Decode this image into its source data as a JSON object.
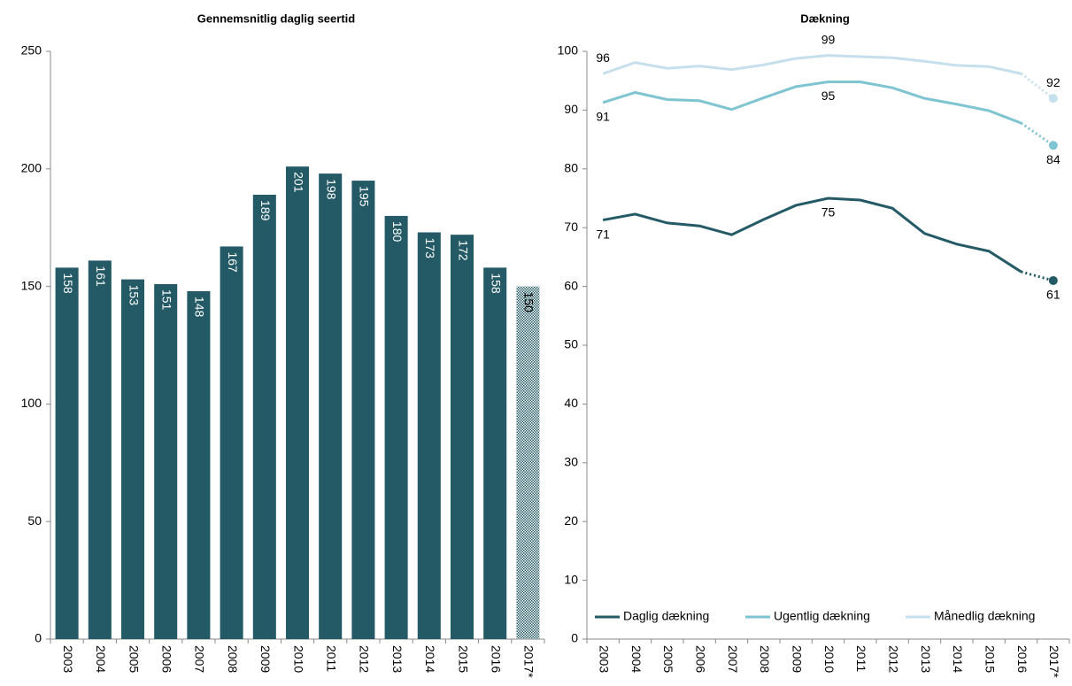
{
  "chart_data": [
    {
      "type": "bar",
      "title": "Gennemsnitlig daglig seertid",
      "categories": [
        "2003",
        "2004",
        "2005",
        "2006",
        "2007",
        "2008",
        "2009",
        "2010",
        "2011",
        "2012",
        "2013",
        "2014",
        "2015",
        "2016",
        "2017*"
      ],
      "values": [
        158,
        161,
        153,
        151,
        148,
        167,
        189,
        201,
        198,
        195,
        180,
        173,
        172,
        158,
        150
      ],
      "color": "#235a66",
      "ylim": [
        0,
        250
      ],
      "yticks": [
        0,
        50,
        100,
        150,
        200,
        250
      ]
    },
    {
      "type": "line",
      "title": "Dækning",
      "categories": [
        "2003",
        "2004",
        "2005",
        "2006",
        "2007",
        "2008",
        "2009",
        "2010",
        "2011",
        "2012",
        "2013",
        "2014",
        "2015",
        "2016",
        "2017*"
      ],
      "series": [
        {
          "name": "Daglig dækning",
          "color": "#235a66",
          "label_position": "below",
          "values": [
            71.3,
            72.3,
            70.8,
            70.3,
            68.8,
            71.4,
            73.8,
            75,
            74.7,
            73.3,
            69,
            67.2,
            66,
            62.5,
            61
          ],
          "value_labels": [
            "71",
            null,
            null,
            null,
            null,
            null,
            null,
            "75",
            null,
            null,
            null,
            null,
            null,
            null,
            "61"
          ]
        },
        {
          "name": "Ugentlig dækning",
          "color": "#7fc4d1",
          "label_position": "below",
          "values": [
            91.3,
            93,
            91.8,
            91.6,
            90.1,
            92.1,
            94,
            94.8,
            94.8,
            93.8,
            92,
            91,
            89.9,
            87.8,
            84
          ],
          "value_labels": [
            "91",
            null,
            null,
            null,
            null,
            null,
            null,
            "95",
            null,
            null,
            null,
            null,
            null,
            null,
            "84"
          ]
        },
        {
          "name": "Månedlig dækning",
          "color": "#c5dfec",
          "label_position": "above",
          "values": [
            96.2,
            98.1,
            97.1,
            97.5,
            96.9,
            97.7,
            98.8,
            99.3,
            99.1,
            98.9,
            98.3,
            97.6,
            97.4,
            96.2,
            92
          ],
          "value_labels": [
            "96",
            null,
            null,
            null,
            null,
            null,
            null,
            "99",
            null,
            null,
            null,
            null,
            null,
            null,
            "92"
          ]
        }
      ],
      "ylim": [
        0,
        100
      ],
      "yticks": [
        0,
        10,
        20,
        30,
        40,
        50,
        60,
        70,
        80,
        90,
        100
      ],
      "legend": "bottom"
    }
  ]
}
